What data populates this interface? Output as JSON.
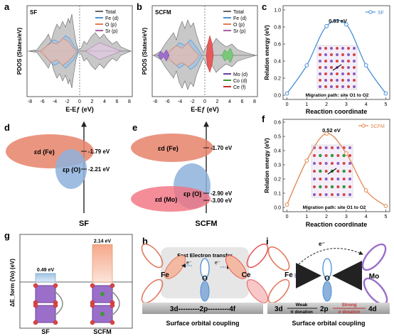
{
  "panels": {
    "a": {
      "letter": "a",
      "tag": "SF",
      "ylabel": "PDOS (States/eV)",
      "xlabel": "E-Eƒ (eV)",
      "legend": [
        "Total",
        "Fe (d)",
        "O (p)",
        "Sr (p)"
      ],
      "xticks": [
        "-8",
        "-6",
        "-4",
        "-2",
        "0",
        "2",
        "4",
        "6",
        "8"
      ]
    },
    "b": {
      "letter": "b",
      "tag": "SCFM",
      "ylabel": "PDOS (States/eV)",
      "xlabel": "E-Eƒ (eV)",
      "legend_top": [
        "Total",
        "Fe (d)",
        "O (p)",
        "Sr (p)"
      ],
      "legend_bottom": [
        "Mo (d)",
        "Co (d)",
        "Ce (f)"
      ],
      "xticks": [
        "-8",
        "-6",
        "-4",
        "-2",
        "0",
        "2",
        "4",
        "6",
        "8"
      ]
    },
    "c": {
      "letter": "c",
      "series": "SF",
      "peak_label": "0.83 eV",
      "ylabel": "Relation energy (eV)",
      "xlabel": "Reaction coordinate",
      "path_label": "Migration path: site O1 to O2",
      "yticks": [
        "0.0",
        "0.2",
        "0.4",
        "0.6",
        "0.8",
        "1.0"
      ],
      "xticks": [
        "0",
        "1",
        "2",
        "3",
        "4",
        "5"
      ]
    },
    "d": {
      "letter": "d",
      "fe_label": "εd (Fe)",
      "o_label": "εp (O)",
      "val1": "-1.79 eV",
      "val2": "-2.21 eV",
      "bottom": "SF"
    },
    "e": {
      "letter": "e",
      "fe_label": "εd (Fe)",
      "mo_label": "εd (Mo)",
      "o_label": "εp (O)",
      "val1": "-1.70 eV",
      "val2": "-2.90 eV",
      "val3": "-3.00 eV",
      "bottom": "SCFM"
    },
    "f": {
      "letter": "f",
      "series": "SCFM",
      "peak_label": "0.52 eV",
      "ylabel": "Relation energy (eV)",
      "xlabel": "Reaction coordinate",
      "path_label": "Migration path: site O1 to O2",
      "yticks": [
        "0.0",
        "0.1",
        "0.2",
        "0.3",
        "0.4",
        "0.5",
        "0.6"
      ],
      "xticks": [
        "0",
        "1",
        "2",
        "3",
        "4",
        "5"
      ]
    },
    "g": {
      "letter": "g",
      "ylabel": "ΔE_form (Vo) (eV)",
      "bar1_label": "0.49 eV",
      "bar2_label": "2.14 eV",
      "cats": [
        "SF",
        "SCFM"
      ]
    },
    "h": {
      "letter": "h",
      "title": "Fast Electron transfer",
      "e1": "e⁻",
      "e2": "e⁻",
      "fe": "Fe",
      "o": "O",
      "ce": "Ce",
      "bar": "3d---------2p---------4f",
      "caption": "Surface orbital coupling"
    },
    "i": {
      "letter": "i",
      "e_top": "e⁻",
      "fe": "Fe",
      "o": "O",
      "mo": "Mo",
      "d3": "3d",
      "p2": "2p",
      "d4": "4d",
      "weak": "Weak",
      "pi_don": "π donation",
      "strong": "Strong",
      "sig_don": "σ donation",
      "caption": "Surface orbital coupling"
    }
  },
  "chart_data": [
    {
      "type": "line",
      "panel": "c",
      "title": "",
      "xlabel": "Reaction coordinate",
      "ylabel": "Relation energy (eV)",
      "series": [
        {
          "name": "SF",
          "x": [
            0,
            1,
            2,
            3,
            4,
            5
          ],
          "values": [
            0.02,
            0.35,
            0.81,
            0.83,
            0.35,
            0.02
          ]
        }
      ],
      "xlim": [
        -0.2,
        5.2
      ],
      "ylim": [
        -0.05,
        1.05
      ],
      "color": "#4a8fd6"
    },
    {
      "type": "line",
      "panel": "f",
      "title": "",
      "xlabel": "Reaction coordinate",
      "ylabel": "Relation energy (eV)",
      "series": [
        {
          "name": "SCFM",
          "x": [
            0,
            1,
            2,
            3,
            4,
            5
          ],
          "values": [
            0.02,
            0.33,
            0.52,
            0.38,
            0.12,
            0.01
          ]
        }
      ],
      "xlim": [
        -0.2,
        5.2
      ],
      "ylim": [
        -0.03,
        0.62
      ],
      "color": "#e2874e"
    },
    {
      "type": "bar",
      "panel": "g",
      "categories": [
        "SF",
        "SCFM"
      ],
      "values": [
        0.49,
        2.14
      ],
      "ylabel": "ΔE_form (Vo) (eV)",
      "ylim": [
        0,
        2.4
      ]
    }
  ]
}
